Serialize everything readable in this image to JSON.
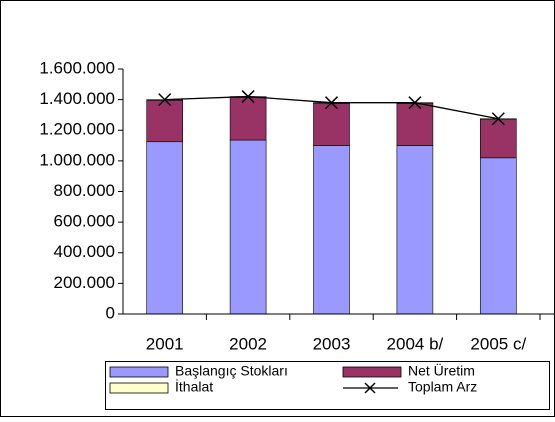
{
  "chart_data": {
    "type": "bar",
    "categories": [
      "2001",
      "2002",
      "2003",
      "2004 b/",
      "2005 c/"
    ],
    "series": [
      {
        "name": "Başlangıç Stokları",
        "color": "#9999ff",
        "values": [
          1125000,
          1136000,
          1100000,
          1100000,
          1020000
        ]
      },
      {
        "name": "Net Üretim",
        "color": "#993366",
        "values": [
          270000,
          279000,
          275000,
          275000,
          250000
        ]
      },
      {
        "name": "İthalat",
        "color": "#ffffcc",
        "values": [
          5000,
          5000,
          5000,
          5000,
          5000
        ]
      },
      {
        "name": "Toplam Arz",
        "type": "line",
        "color": "#000000",
        "values": [
          1400000,
          1420000,
          1380000,
          1380000,
          1275000
        ]
      }
    ],
    "ylim": [
      0,
      1600000
    ],
    "yticks": [
      0,
      {
        "value": 200000,
        "label": "200.000"
      },
      {
        "value": 400000,
        "label": "400.000"
      },
      {
        "value": 600000,
        "label": "600.000"
      },
      {
        "value": 800000,
        "label": "800.000"
      },
      {
        "value": 1000000,
        "label": "1.000.000"
      },
      {
        "value": 1200000,
        "label": "1.200.000"
      },
      {
        "value": 1400000,
        "label": "1.400.000"
      },
      {
        "value": 1600000,
        "label": "1.600.000"
      }
    ],
    "grid": false
  }
}
